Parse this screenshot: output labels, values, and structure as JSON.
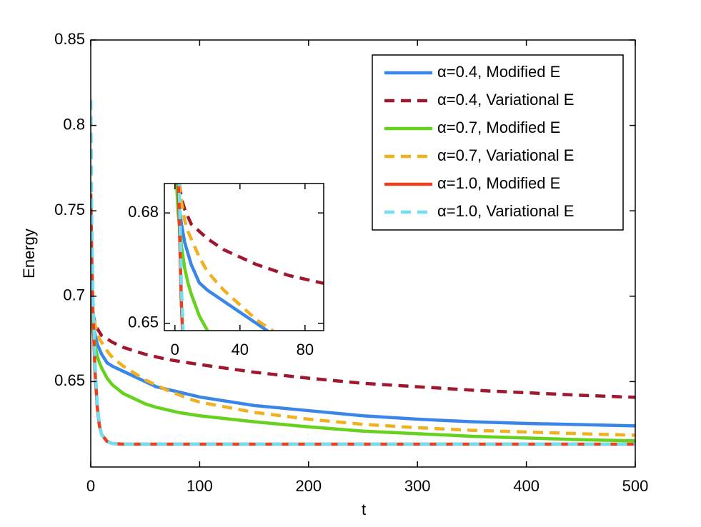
{
  "chart_data": {
    "type": "line",
    "xlabel": "t",
    "ylabel": "Energy",
    "xlim": [
      0,
      500
    ],
    "ylim": [
      0.6,
      0.85
    ],
    "xticks": [
      0,
      100,
      200,
      300,
      400,
      500
    ],
    "yticks": [
      0.65,
      0.7,
      0.75,
      0.8,
      0.85
    ],
    "legend": "upper right",
    "x": [
      0,
      1,
      2,
      4,
      6,
      8,
      10,
      15,
      20,
      30,
      40,
      50,
      60,
      70,
      80,
      90,
      100,
      150,
      200,
      250,
      300,
      350,
      400,
      450,
      500
    ],
    "series": [
      {
        "name": "α=0.4, Modified E",
        "color": "#3a86e8",
        "style": "solid",
        "values": [
          0.7,
          0.69,
          0.684,
          0.677,
          0.672,
          0.669,
          0.666,
          0.661,
          0.659,
          0.656,
          0.653,
          0.65,
          0.647,
          0.6455,
          0.644,
          0.6425,
          0.641,
          0.636,
          0.633,
          0.63,
          0.628,
          0.6265,
          0.6255,
          0.6248,
          0.6241
        ]
      },
      {
        "name": "α=0.4, Variational E",
        "color": "#a01830",
        "style": "dashed",
        "values": [
          0.71,
          0.697,
          0.69,
          0.684,
          0.681,
          0.679,
          0.677,
          0.675,
          0.673,
          0.67,
          0.668,
          0.666,
          0.6645,
          0.663,
          0.662,
          0.661,
          0.66,
          0.6555,
          0.652,
          0.649,
          0.647,
          0.645,
          0.6435,
          0.642,
          0.6408
        ]
      },
      {
        "name": "α=0.7, Modified E",
        "color": "#66d11e",
        "style": "solid",
        "values": [
          0.7,
          0.688,
          0.68,
          0.671,
          0.665,
          0.661,
          0.658,
          0.652,
          0.648,
          0.643,
          0.64,
          0.637,
          0.635,
          0.6335,
          0.632,
          0.631,
          0.63,
          0.6265,
          0.6235,
          0.621,
          0.6195,
          0.618,
          0.617,
          0.616,
          0.6153
        ]
      },
      {
        "name": "α=0.7, Variational E",
        "color": "#f0b020",
        "style": "dashed",
        "values": [
          0.715,
          0.7,
          0.69,
          0.683,
          0.678,
          0.675,
          0.673,
          0.668,
          0.664,
          0.659,
          0.655,
          0.651,
          0.648,
          0.645,
          0.6425,
          0.64,
          0.638,
          0.632,
          0.628,
          0.625,
          0.623,
          0.6215,
          0.6205,
          0.6195,
          0.6186
        ]
      },
      {
        "name": "α=1.0, Modified E",
        "color": "#e84020",
        "style": "solid",
        "values": [
          0.76,
          0.72,
          0.69,
          0.655,
          0.635,
          0.624,
          0.619,
          0.615,
          0.6137,
          0.6134,
          0.6134,
          0.6134,
          0.6134,
          0.6134,
          0.6134,
          0.6134,
          0.6134,
          0.6134,
          0.6134,
          0.6134,
          0.6134,
          0.6134,
          0.6134,
          0.6134,
          0.6134
        ]
      },
      {
        "name": "α=1.0, Variational E",
        "color": "#70e0f0",
        "style": "dashed",
        "values": [
          0.815,
          0.74,
          0.7,
          0.66,
          0.637,
          0.625,
          0.619,
          0.615,
          0.6137,
          0.6134,
          0.6134,
          0.6134,
          0.6134,
          0.6134,
          0.6134,
          0.6134,
          0.6134,
          0.6134,
          0.6134,
          0.6134,
          0.6134,
          0.6134,
          0.6134,
          0.6134,
          0.6134
        ]
      }
    ],
    "inset": {
      "xlim": [
        -6.5,
        91.5
      ],
      "ylim": [
        0.648,
        0.688
      ],
      "xticks": [
        0,
        40,
        80
      ],
      "yticks": [
        0.65,
        0.68
      ]
    }
  }
}
